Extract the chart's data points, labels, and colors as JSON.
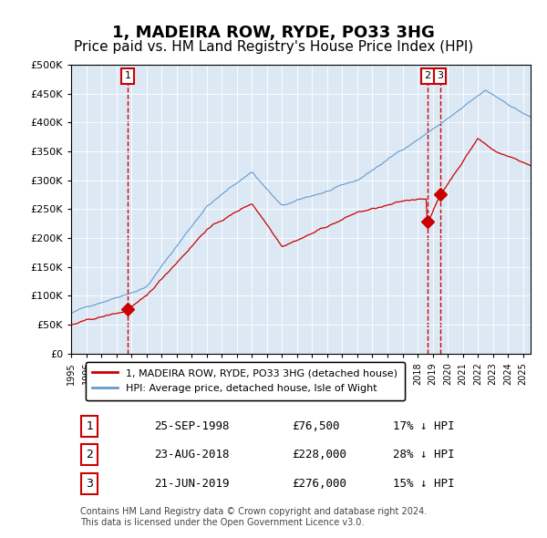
{
  "title": "1, MADEIRA ROW, RYDE, PO33 3HG",
  "subtitle": "Price paid vs. HM Land Registry's House Price Index (HPI)",
  "title_fontsize": 13,
  "subtitle_fontsize": 11,
  "background_color": "#dce9f5",
  "plot_bg_color": "#dce9f5",
  "red_line_color": "#cc0000",
  "blue_line_color": "#6699cc",
  "purchases": [
    {
      "label": "1",
      "date_num": 1998.73,
      "price": 76500,
      "hpi_pct": "17% ↓ HPI",
      "date_str": "25-SEP-1998"
    },
    {
      "label": "2",
      "date_num": 2018.64,
      "price": 228000,
      "hpi_pct": "28% ↓ HPI",
      "date_str": "23-AUG-2018"
    },
    {
      "label": "3",
      "date_num": 2019.47,
      "price": 276000,
      "hpi_pct": "15% ↓ HPI",
      "date_str": "21-JUN-2019"
    }
  ],
  "ylim": [
    0,
    500000
  ],
  "xlim_start": 1995.0,
  "xlim_end": 2025.5,
  "ytick_values": [
    0,
    50000,
    100000,
    150000,
    200000,
    250000,
    300000,
    350000,
    400000,
    450000,
    500000
  ],
  "ytick_labels": [
    "£0",
    "£50K",
    "£100K",
    "£150K",
    "£200K",
    "£250K",
    "£300K",
    "£350K",
    "£400K",
    "£450K",
    "£500K"
  ],
  "xtick_years": [
    1995,
    1996,
    1997,
    1998,
    1999,
    2000,
    2001,
    2002,
    2003,
    2004,
    2005,
    2006,
    2007,
    2008,
    2009,
    2010,
    2011,
    2012,
    2013,
    2014,
    2015,
    2016,
    2017,
    2018,
    2019,
    2020,
    2021,
    2022,
    2023,
    2024,
    2025
  ],
  "legend_label_red": "1, MADEIRA ROW, RYDE, PO33 3HG (detached house)",
  "legend_label_blue": "HPI: Average price, detached house, Isle of Wight",
  "footer_text": "Contains HM Land Registry data © Crown copyright and database right 2024.\nThis data is licensed under the Open Government Licence v3.0.",
  "marker_color": "#cc0000",
  "vline_color": "#cc0000",
  "label_box_color": "#cc0000"
}
